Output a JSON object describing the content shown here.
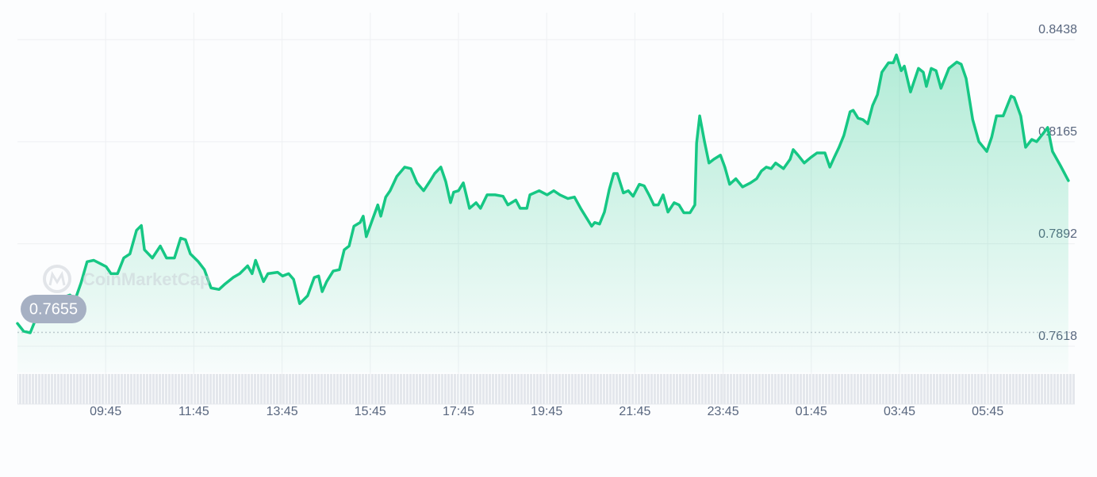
{
  "chart_data": {
    "type": "line",
    "color": "#16c784",
    "watermark": "CoinMarketCap",
    "open_price": 0.7655,
    "x": [
      7.75,
      7.89,
      8.04,
      8.15,
      8.29,
      8.4,
      8.51,
      8.65,
      8.94,
      9.06,
      9.19,
      9.33,
      9.48,
      9.76,
      9.87,
      10.02,
      10.16,
      10.3,
      10.45,
      10.56,
      10.63,
      10.81,
      10.99,
      11.13,
      11.31,
      11.45,
      11.56,
      11.67,
      11.85,
      11.99,
      12.14,
      12.32,
      12.46,
      12.64,
      12.79,
      12.97,
      13.07,
      13.15,
      13.33,
      13.43,
      13.65,
      13.76,
      13.9,
      14.01,
      14.15,
      14.33,
      14.48,
      14.58,
      14.66,
      14.76,
      14.91,
      15.05,
      15.16,
      15.27,
      15.38,
      15.52,
      15.59,
      15.66,
      15.81,
      15.92,
      15.99,
      16.1,
      16.2,
      16.35,
      16.53,
      16.67,
      16.81,
      16.96,
      17.1,
      17.21,
      17.35,
      17.46,
      17.57,
      17.64,
      17.75,
      17.86,
      18.0,
      18.15,
      18.25,
      18.4,
      18.58,
      18.76,
      18.87,
      19.05,
      19.15,
      19.3,
      19.37,
      19.58,
      19.76,
      19.91,
      20.05,
      20.23,
      20.38,
      20.52,
      20.66,
      20.77,
      20.84,
      20.95,
      21.06,
      21.17,
      21.27,
      21.35,
      21.49,
      21.6,
      21.71,
      21.85,
      21.96,
      22.07,
      22.18,
      22.28,
      22.39,
      22.5,
      22.64,
      22.75,
      22.86,
      23.0,
      23.11,
      23.15,
      23.22,
      23.33,
      23.43,
      23.54,
      23.69,
      23.79,
      23.9,
      24.04,
      24.19,
      24.37,
      24.51,
      24.62,
      24.73,
      24.84,
      24.94,
      25.12,
      25.27,
      25.34,
      25.45,
      25.59,
      25.74,
      25.88,
      26.06,
      26.17,
      26.27,
      26.38,
      26.49,
      26.63,
      26.7,
      26.81,
      26.92,
      27.03,
      27.14,
      27.25,
      27.35,
      27.5,
      27.61,
      27.68,
      27.79,
      27.86,
      28.0,
      28.18,
      28.29,
      28.36,
      28.47,
      28.58,
      28.69,
      28.87,
      29.05,
      29.15,
      29.26,
      29.41,
      29.55,
      29.73,
      29.84,
      29.95,
      30.1,
      30.28,
      30.35,
      30.5,
      30.61,
      30.75,
      30.86,
      31.0,
      31.11,
      31.22,
      31.4,
      31.58
    ],
    "values": [
      0.7679,
      0.7658,
      0.7654,
      0.7686,
      0.77,
      0.7711,
      0.7686,
      0.7743,
      0.7755,
      0.7743,
      0.7787,
      0.7844,
      0.7848,
      0.7831,
      0.7812,
      0.7812,
      0.7854,
      0.7865,
      0.7928,
      0.7941,
      0.7876,
      0.7854,
      0.7886,
      0.7854,
      0.7854,
      0.7907,
      0.7903,
      0.7865,
      0.7844,
      0.7823,
      0.7774,
      0.777,
      0.7785,
      0.7802,
      0.7812,
      0.7833,
      0.7812,
      0.7848,
      0.7791,
      0.7812,
      0.7816,
      0.7806,
      0.7812,
      0.7797,
      0.7732,
      0.7753,
      0.7802,
      0.7806,
      0.7764,
      0.7791,
      0.7819,
      0.7823,
      0.7876,
      0.7886,
      0.7939,
      0.7949,
      0.7966,
      0.7911,
      0.796,
      0.7996,
      0.7966,
      0.8017,
      0.8034,
      0.8072,
      0.8097,
      0.8093,
      0.8055,
      0.8034,
      0.8059,
      0.808,
      0.8097,
      0.8059,
      0.8002,
      0.803,
      0.8034,
      0.8055,
      0.7987,
      0.8002,
      0.7987,
      0.8023,
      0.8023,
      0.8019,
      0.7996,
      0.8009,
      0.7987,
      0.7987,
      0.8023,
      0.8034,
      0.8023,
      0.8034,
      0.8023,
      0.8013,
      0.8017,
      0.7987,
      0.796,
      0.7939,
      0.7949,
      0.7945,
      0.7977,
      0.8038,
      0.808,
      0.808,
      0.8028,
      0.8034,
      0.8019,
      0.8051,
      0.8047,
      0.8023,
      0.7996,
      0.7996,
      0.8023,
      0.7977,
      0.8002,
      0.7996,
      0.7975,
      0.7975,
      0.7996,
      0.8161,
      0.8234,
      0.8165,
      0.8108,
      0.8118,
      0.8129,
      0.8097,
      0.8051,
      0.8066,
      0.8044,
      0.8055,
      0.8066,
      0.8087,
      0.8097,
      0.8093,
      0.8108,
      0.8093,
      0.8118,
      0.8144,
      0.8129,
      0.8108,
      0.8123,
      0.8135,
      0.8135,
      0.8097,
      0.8123,
      0.815,
      0.8182,
      0.8245,
      0.8249,
      0.8228,
      0.8224,
      0.8213,
      0.8262,
      0.8291,
      0.8351,
      0.8376,
      0.8376,
      0.8397,
      0.8355,
      0.8367,
      0.8298,
      0.8361,
      0.8351,
      0.8313,
      0.8361,
      0.8355,
      0.8308,
      0.8361,
      0.8378,
      0.8372,
      0.8334,
      0.8224,
      0.8165,
      0.8139,
      0.8177,
      0.8234,
      0.8234,
      0.8287,
      0.8283,
      0.8234,
      0.815,
      0.8171,
      0.8165,
      0.8186,
      0.8203,
      0.8139,
      0.8101,
      0.8061
    ],
    "xlim": [
      7.75,
      31.75
    ],
    "xticks": [
      {
        "value": 9.75,
        "label": "09:45"
      },
      {
        "value": 11.75,
        "label": "11:45"
      },
      {
        "value": 13.75,
        "label": "13:45"
      },
      {
        "value": 15.75,
        "label": "15:45"
      },
      {
        "value": 17.75,
        "label": "17:45"
      },
      {
        "value": 19.75,
        "label": "19:45"
      },
      {
        "value": 21.75,
        "label": "21:45"
      },
      {
        "value": 23.75,
        "label": "23:45"
      },
      {
        "value": 25.75,
        "label": "01:45"
      },
      {
        "value": 27.75,
        "label": "03:45"
      },
      {
        "value": 29.75,
        "label": "05:45"
      }
    ],
    "ylim": [
      0.7618,
      0.8438
    ],
    "yticks": [
      0.7618,
      0.7892,
      0.8165,
      0.8438
    ],
    "grid": true
  }
}
